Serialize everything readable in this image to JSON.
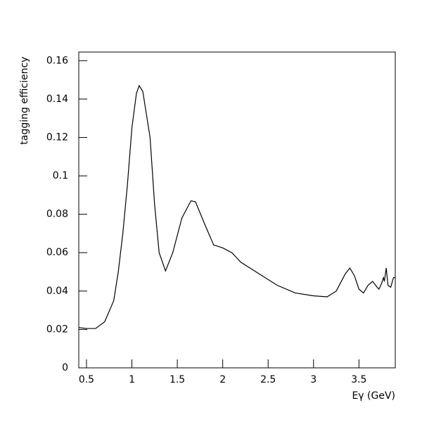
{
  "chart_data": {
    "type": "line",
    "xlabel": "Eγ (GeV)",
    "ylabel": "tagging efficiency",
    "x": [
      0.415,
      0.5,
      0.6,
      0.7,
      0.8,
      0.85,
      0.9,
      0.95,
      1.0,
      1.05,
      1.08,
      1.12,
      1.2,
      1.25,
      1.3,
      1.37,
      1.45,
      1.55,
      1.65,
      1.7,
      1.8,
      1.9,
      2.0,
      2.1,
      2.2,
      2.4,
      2.6,
      2.8,
      3.0,
      3.15,
      3.25,
      3.35,
      3.4,
      3.45,
      3.5,
      3.55,
      3.6,
      3.65,
      3.7,
      3.72,
      3.75,
      3.77,
      3.78,
      3.8,
      3.82,
      3.85,
      3.88,
      3.9
    ],
    "series": [
      {
        "color": "#000000",
        "values": [
          0.021,
          0.0205,
          0.0205,
          0.024,
          0.035,
          0.05,
          0.07,
          0.095,
          0.125,
          0.143,
          0.147,
          0.144,
          0.12,
          0.085,
          0.06,
          0.0505,
          0.06,
          0.078,
          0.087,
          0.0865,
          0.075,
          0.064,
          0.0625,
          0.06,
          0.055,
          0.049,
          0.043,
          0.039,
          0.0375,
          0.037,
          0.04,
          0.049,
          0.052,
          0.048,
          0.041,
          0.039,
          0.043,
          0.045,
          0.042,
          0.041,
          0.044,
          0.047,
          0.045,
          0.052,
          0.043,
          0.042,
          0.047,
          0.047
        ]
      }
    ],
    "xlim": [
      0.415,
      3.9
    ],
    "ylim": [
      0,
      0.1645
    ],
    "xticks": [
      0.5,
      1,
      1.5,
      2,
      2.5,
      3,
      3.5
    ],
    "yticks": [
      0,
      0.02,
      0.04,
      0.06,
      0.08,
      0.1,
      0.12,
      0.14,
      0.16
    ]
  }
}
